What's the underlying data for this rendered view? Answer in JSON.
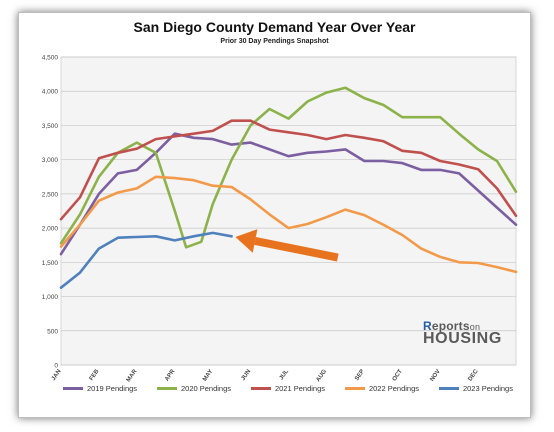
{
  "chart_data": {
    "type": "line",
    "title": "San Diego County Demand Year Over Year",
    "subtitle": "Prior 30 Day Pendings Snapshot",
    "xlabel": "",
    "ylabel": "",
    "ylim": [
      0,
      4500
    ],
    "yticks": [
      "0",
      "500",
      "1,000",
      "1,500",
      "2,000",
      "2,500",
      "3,000",
      "3,500",
      "4,000",
      "4,500"
    ],
    "x_tick_labels": [
      "JAN",
      "FEB",
      "MAR",
      "APR",
      "MAY",
      "JUN",
      "JUL",
      "AUG",
      "SEP",
      "OCT",
      "NOV",
      "DEC"
    ],
    "grid": true,
    "legend_position": "bottom",
    "series": [
      {
        "name": "2019 Pendings",
        "color": "#7b5fa0",
        "points": [
          [
            0,
            1620
          ],
          [
            0.5,
            2050
          ],
          [
            1,
            2500
          ],
          [
            1.5,
            2800
          ],
          [
            2,
            2850
          ],
          [
            2.5,
            3100
          ],
          [
            3,
            3380
          ],
          [
            3.5,
            3320
          ],
          [
            4,
            3300
          ],
          [
            4.5,
            3220
          ],
          [
            5,
            3250
          ],
          [
            5.5,
            3150
          ],
          [
            6,
            3050
          ],
          [
            6.5,
            3100
          ],
          [
            7,
            3120
          ],
          [
            7.5,
            3150
          ],
          [
            8,
            2980
          ],
          [
            8.5,
            2980
          ],
          [
            9,
            2950
          ],
          [
            9.5,
            2850
          ],
          [
            10,
            2850
          ],
          [
            10.5,
            2800
          ],
          [
            11,
            2550
          ],
          [
            11.5,
            2300
          ],
          [
            12,
            2050
          ]
        ]
      },
      {
        "name": "2020 Pendings",
        "color": "#8cb24a",
        "points": [
          [
            0,
            1780
          ],
          [
            0.5,
            2200
          ],
          [
            1,
            2750
          ],
          [
            1.5,
            3100
          ],
          [
            2,
            3250
          ],
          [
            2.5,
            3100
          ],
          [
            3,
            2250
          ],
          [
            3.3,
            1720
          ],
          [
            3.7,
            1800
          ],
          [
            4,
            2350
          ],
          [
            4.5,
            3000
          ],
          [
            5,
            3500
          ],
          [
            5.5,
            3740
          ],
          [
            6,
            3600
          ],
          [
            6.5,
            3850
          ],
          [
            7,
            3980
          ],
          [
            7.5,
            4050
          ],
          [
            8,
            3900
          ],
          [
            8.5,
            3800
          ],
          [
            9,
            3620
          ],
          [
            9.5,
            3620
          ],
          [
            10,
            3620
          ],
          [
            10.5,
            3380
          ],
          [
            11,
            3150
          ],
          [
            11.5,
            2980
          ],
          [
            12,
            2530
          ]
        ]
      },
      {
        "name": "2021 Pendings",
        "color": "#c0504d",
        "points": [
          [
            0,
            2130
          ],
          [
            0.5,
            2450
          ],
          [
            1,
            3020
          ],
          [
            1.5,
            3100
          ],
          [
            2,
            3160
          ],
          [
            2.5,
            3300
          ],
          [
            3,
            3340
          ],
          [
            3.5,
            3380
          ],
          [
            4,
            3420
          ],
          [
            4.5,
            3570
          ],
          [
            5,
            3570
          ],
          [
            5.5,
            3440
          ],
          [
            6,
            3400
          ],
          [
            6.5,
            3360
          ],
          [
            7,
            3300
          ],
          [
            7.5,
            3360
          ],
          [
            8,
            3320
          ],
          [
            8.5,
            3270
          ],
          [
            9,
            3130
          ],
          [
            9.5,
            3100
          ],
          [
            10,
            2980
          ],
          [
            10.5,
            2930
          ],
          [
            11,
            2860
          ],
          [
            11.5,
            2580
          ],
          [
            12,
            2180
          ]
        ]
      },
      {
        "name": "2022 Pendings",
        "color": "#f39a4a",
        "points": [
          [
            0,
            1730
          ],
          [
            0.5,
            2050
          ],
          [
            1,
            2400
          ],
          [
            1.5,
            2520
          ],
          [
            2,
            2580
          ],
          [
            2.5,
            2750
          ],
          [
            3,
            2730
          ],
          [
            3.5,
            2700
          ],
          [
            4,
            2620
          ],
          [
            4.5,
            2600
          ],
          [
            5,
            2420
          ],
          [
            5.5,
            2200
          ],
          [
            6,
            2000
          ],
          [
            6.5,
            2060
          ],
          [
            7,
            2160
          ],
          [
            7.5,
            2270
          ],
          [
            8,
            2190
          ],
          [
            8.5,
            2050
          ],
          [
            9,
            1900
          ],
          [
            9.5,
            1700
          ],
          [
            10,
            1580
          ],
          [
            10.5,
            1500
          ],
          [
            11,
            1490
          ],
          [
            11.5,
            1430
          ],
          [
            12,
            1360
          ]
        ]
      },
      {
        "name": "2023 Pendings",
        "color": "#4f81bd",
        "points": [
          [
            0,
            1130
          ],
          [
            0.5,
            1350
          ],
          [
            1,
            1700
          ],
          [
            1.5,
            1860
          ],
          [
            2,
            1870
          ],
          [
            2.5,
            1880
          ],
          [
            3,
            1820
          ],
          [
            3.5,
            1880
          ],
          [
            4,
            1930
          ],
          [
            4.5,
            1880
          ]
        ]
      }
    ],
    "annotation": {
      "type": "arrow",
      "color": "#e8731e",
      "from": [
        7.3,
        1570
      ],
      "to": [
        4.6,
        1870
      ]
    }
  },
  "logo": {
    "line1": "Reports",
    "line1_small": "on",
    "line2": "HOUSING"
  }
}
